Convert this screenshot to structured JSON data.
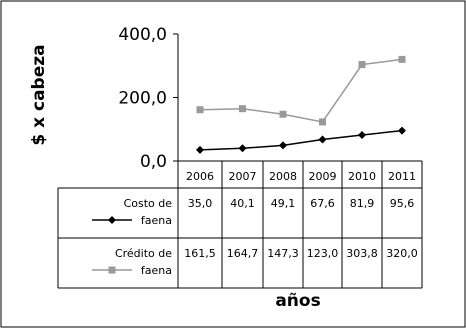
{
  "chart_data": {
    "type": "line",
    "ylabel": "$ x cabeza",
    "xlabel": "años",
    "ylim": [
      0,
      400
    ],
    "yticks": [
      "0,0",
      "200,0",
      "400,0"
    ],
    "categories": [
      "2006",
      "2007",
      "2008",
      "2009",
      "2010",
      "2011"
    ],
    "series": [
      {
        "name_line1": "Costo de",
        "name_line2": "faena",
        "marker": "diamond",
        "color": "#000000",
        "values": [
          35.0,
          40.1,
          49.1,
          67.6,
          81.9,
          95.6
        ],
        "labels": [
          "35,0",
          "40,1",
          "49,1",
          "67,6",
          "81,9",
          "95,6"
        ]
      },
      {
        "name_line1": "Crédito de",
        "name_line2": "faena",
        "marker": "square",
        "color": "#999999",
        "values": [
          161.5,
          164.7,
          147.3,
          123.0,
          303.8,
          320.0
        ],
        "labels": [
          "161,5",
          "164,7",
          "147,3",
          "123,0",
          "303,8",
          "320,0"
        ]
      }
    ],
    "legend": "in data table",
    "grid": false
  }
}
